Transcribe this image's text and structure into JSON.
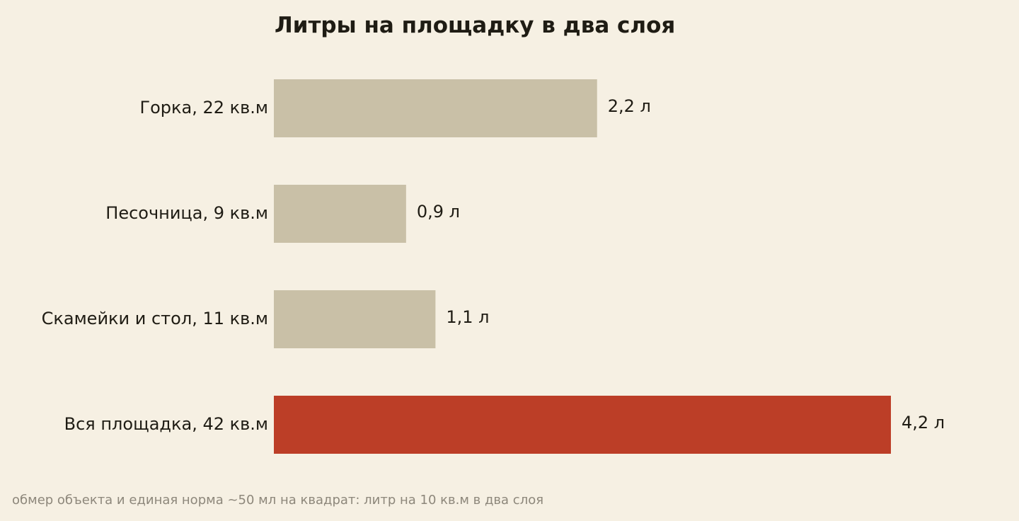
{
  "chart_data": {
    "type": "bar",
    "orientation": "horizontal",
    "title": "Литры на площадку в два слоя",
    "categories": [
      "Горка, 22 кв.м",
      "Песочница, 9 кв.м",
      "Скамейки и стол, 11 кв.м",
      "Вся площадка, 42 кв.м"
    ],
    "values": [
      2.2,
      0.9,
      1.1,
      4.2
    ],
    "value_labels": [
      "2,2 л",
      "0,9 л",
      "1,1 л",
      "4,2 л"
    ],
    "xlim": [
      0,
      4.2
    ],
    "grid": false,
    "legend": "none",
    "colors": {
      "default": "#c9c0a7",
      "highlight": "#bc3e27",
      "background": "#f6f0e3",
      "text": "#1f1c14",
      "note": "#8d877b"
    },
    "highlight_index": 3
  },
  "footnote": "обмер объекта и единая норма ~50 мл на квадрат: литр на 10 кв.м в два слоя"
}
